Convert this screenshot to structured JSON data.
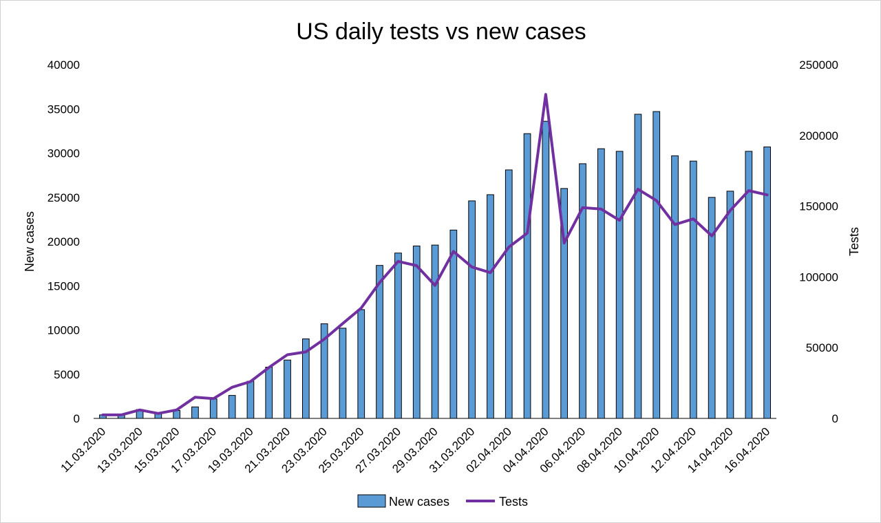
{
  "chart_data": {
    "type": "bar+line",
    "title": "US daily tests vs new cases",
    "ylabel": "New cases",
    "y2label": "Tests",
    "ylim": [
      0,
      40000
    ],
    "y2lim": [
      0,
      250000
    ],
    "yticks": [
      0,
      5000,
      10000,
      15000,
      20000,
      25000,
      30000,
      35000,
      40000
    ],
    "y2ticks": [
      0,
      50000,
      100000,
      150000,
      200000,
      250000
    ],
    "x": [
      "11.03.2020",
      "12.03.2020",
      "13.03.2020",
      "14.03.2020",
      "15.03.2020",
      "16.03.2020",
      "17.03.2020",
      "18.03.2020",
      "19.03.2020",
      "20.03.2020",
      "21.03.2020",
      "22.03.2020",
      "23.03.2020",
      "24.03.2020",
      "25.03.2020",
      "26.03.2020",
      "27.03.2020",
      "28.03.2020",
      "29.03.2020",
      "30.03.2020",
      "31.03.2020",
      "01.04.2020",
      "02.04.2020",
      "03.04.2020",
      "04.04.2020",
      "05.04.2020",
      "06.04.2020",
      "07.04.2020",
      "08.04.2020",
      "09.04.2020",
      "10.04.2020",
      "11.04.2020",
      "12.04.2020",
      "13.04.2020",
      "14.04.2020",
      "15.04.2020",
      "16.04.2020"
    ],
    "xtick_labels": [
      "11.03.2020",
      "13.03.2020",
      "15.03.2020",
      "17.03.2020",
      "19.03.2020",
      "21.03.2020",
      "23.03.2020",
      "25.03.2020",
      "27.03.2020",
      "29.03.2020",
      "31.03.2020",
      "02.04.2020",
      "04.04.2020",
      "06.04.2020",
      "08.04.2020",
      "10.04.2020",
      "12.04.2020",
      "14.04.2020",
      "16.04.2020"
    ],
    "series": [
      {
        "name": "New cases",
        "type": "bar",
        "axis": "left",
        "color": "#5b9bd5",
        "values": [
          400,
          350,
          1000,
          600,
          900,
          1300,
          2200,
          2600,
          4200,
          5800,
          6600,
          9000,
          10700,
          10200,
          12300,
          17300,
          18700,
          19500,
          19600,
          21300,
          24600,
          25300,
          28100,
          32200,
          33600,
          26000,
          28800,
          30500,
          30200,
          34400,
          34700,
          29700,
          29100,
          25000,
          25700,
          30200,
          30700
        ]
      },
      {
        "name": "Tests",
        "type": "line",
        "axis": "right",
        "color": "#7030a0",
        "values": [
          2500,
          2500,
          6000,
          3500,
          6000,
          15000,
          14000,
          22000,
          26000,
          36000,
          45000,
          47000,
          56000,
          67000,
          78000,
          96000,
          111000,
          108000,
          94000,
          118000,
          107000,
          103000,
          121000,
          131000,
          229000,
          124000,
          149000,
          148000,
          140000,
          162000,
          154000,
          137000,
          141000,
          129000,
          147000,
          161000,
          158000
        ]
      }
    ],
    "legend": "bottom",
    "grid": false
  }
}
